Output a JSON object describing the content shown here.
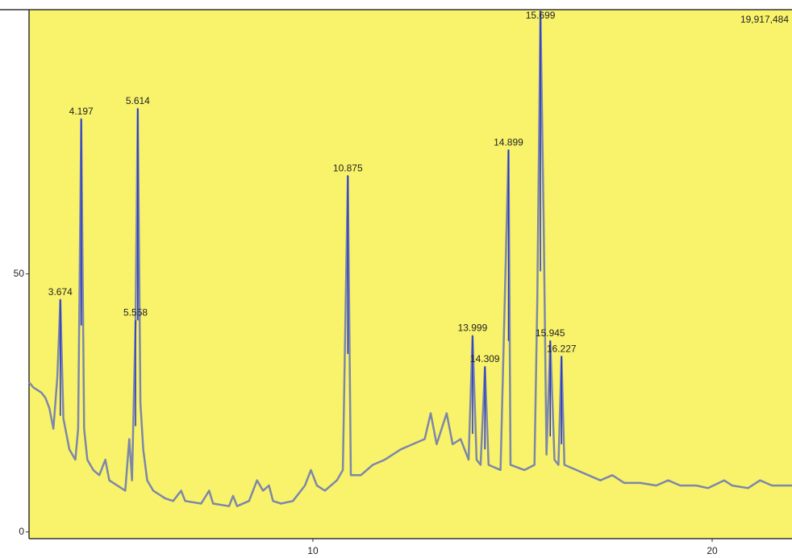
{
  "chart_data": {
    "type": "line",
    "corner_label": "19,917,484",
    "xlim": [
      2.89,
      22.0
    ],
    "xticks": [
      10,
      20
    ],
    "ylim": [
      -1.3,
      101.2
    ],
    "yticks": [
      0,
      50
    ],
    "background": "#f9f36c",
    "series": [
      {
        "color": "#7d87a8",
        "x": [
          2.89,
          3.0,
          3.1,
          3.2,
          3.3,
          3.4,
          3.5,
          3.6,
          3.674,
          3.75,
          3.9,
          4.05,
          4.12,
          4.197,
          4.27,
          4.35,
          4.5,
          4.65,
          4.8,
          4.9,
          5.1,
          5.3,
          5.4,
          5.47,
          5.558,
          5.614,
          5.68,
          5.75,
          5.85,
          6.0,
          6.3,
          6.5,
          6.7,
          6.8,
          7.2,
          7.4,
          7.5,
          7.9,
          8.0,
          8.1,
          8.4,
          8.6,
          8.75,
          8.9,
          9.0,
          9.2,
          9.5,
          9.8,
          9.95,
          10.1,
          10.3,
          10.6,
          10.75,
          10.875,
          10.95,
          11.2,
          11.5,
          11.8,
          12.0,
          12.2,
          12.5,
          12.8,
          12.95,
          13.1,
          13.35,
          13.5,
          13.7,
          13.9,
          13.999,
          14.1,
          14.2,
          14.309,
          14.4,
          14.7,
          14.899,
          14.95,
          15.3,
          15.55,
          15.62,
          15.699,
          15.78,
          15.85,
          15.945,
          16.05,
          16.15,
          16.227,
          16.3,
          16.6,
          16.9,
          17.2,
          17.5,
          17.8,
          18.2,
          18.6,
          18.9,
          19.2,
          19.6,
          19.9,
          20.3,
          20.5,
          20.9,
          21.2,
          21.5,
          22.0
        ],
        "values": [
          29,
          28,
          27.5,
          27,
          26,
          24,
          20,
          30,
          45,
          22,
          16,
          14,
          20,
          80,
          20,
          14,
          12,
          11,
          14,
          10,
          9,
          8,
          18,
          10,
          41,
          82,
          25,
          16,
          10,
          8,
          6.5,
          6,
          8,
          6,
          5.5,
          8,
          5.5,
          5,
          7,
          5,
          6,
          10,
          8,
          9,
          6,
          5.5,
          6,
          9,
          12,
          9,
          8,
          10,
          12,
          69,
          11,
          11,
          13,
          14,
          15,
          16,
          17,
          18,
          23,
          17,
          23,
          17,
          18,
          14,
          38,
          14,
          13,
          32,
          13,
          12,
          74,
          13,
          12,
          13,
          45,
          101,
          60,
          15,
          37,
          14,
          13,
          34,
          13,
          12,
          11,
          10,
          11,
          9.5,
          9.5,
          9,
          10,
          9,
          9,
          8.5,
          10,
          9,
          8.5,
          10,
          9,
          9
        ]
      }
    ],
    "annotations": [
      {
        "x": 3.674,
        "y": 45
      },
      {
        "x": 4.197,
        "y": 80
      },
      {
        "x": 5.558,
        "y": 41
      },
      {
        "x": 5.614,
        "y": 82
      },
      {
        "x": 10.875,
        "y": 69
      },
      {
        "x": 13.999,
        "y": 38
      },
      {
        "x": 14.309,
        "y": 32
      },
      {
        "x": 14.899,
        "y": 74
      },
      {
        "x": 15.699,
        "y": 101
      },
      {
        "x": 15.945,
        "y": 37
      },
      {
        "x": 16.227,
        "y": 34
      }
    ]
  }
}
